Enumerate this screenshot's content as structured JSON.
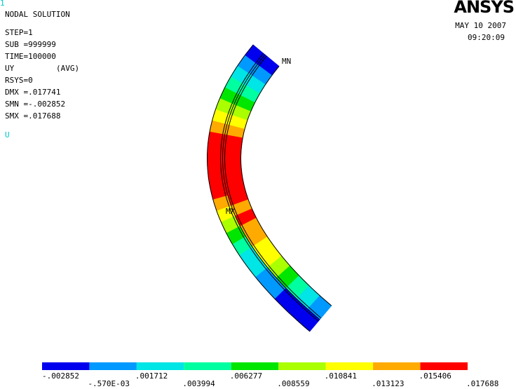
{
  "window_marker": "1",
  "logo": "ANSYS",
  "header": {
    "title": "NODAL SOLUTION",
    "info": [
      "STEP=1",
      "SUB =999999",
      "TIME=100000"
    ],
    "quantity": "UY",
    "averaging": "(AVG)",
    "stats": [
      "RSYS=0",
      "DMX =.017741",
      "SMN =-.002852",
      "SMX =.017688"
    ],
    "symbol": "U"
  },
  "date": "MAY 10 2007",
  "time": "09:20:09",
  "markers": {
    "min": "MN",
    "max": "MX"
  },
  "legend": {
    "colors": [
      "#0000ee",
      "#0099ff",
      "#00e5e5",
      "#00ffa0",
      "#00e600",
      "#aaff00",
      "#ffff00",
      "#ffaa00",
      "#ff0000"
    ],
    "labels": [
      "-.002852",
      "-.570E-03",
      ".001712",
      ".003994",
      ".006277",
      ".008559",
      ".010841",
      ".013123",
      ".015406",
      ".017688"
    ]
  }
}
